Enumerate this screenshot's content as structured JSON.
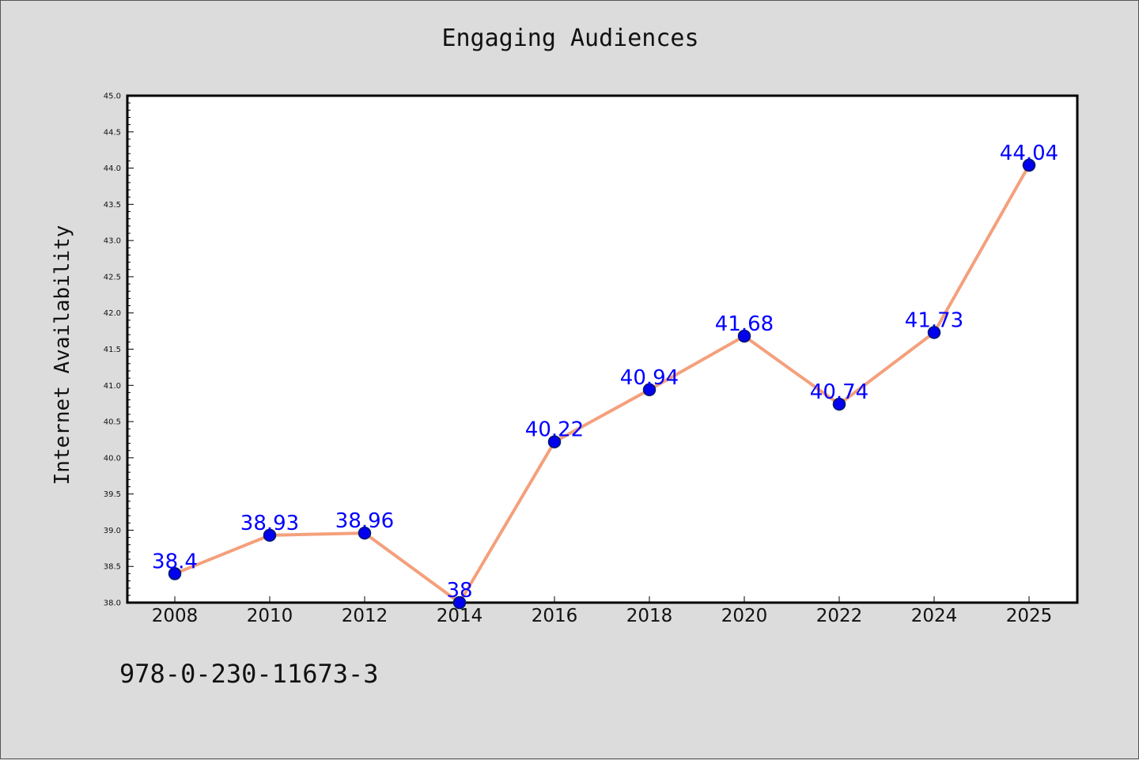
{
  "chart_data": {
    "type": "line",
    "title": "Engaging Audiences",
    "xlabel": "",
    "ylabel": "Internet Availability",
    "categories": [
      "2008",
      "2010",
      "2012",
      "2014",
      "2016",
      "2018",
      "2020",
      "2022",
      "2024",
      "2025"
    ],
    "series": [
      {
        "values": [
          38.4,
          38.93,
          38.96,
          38,
          40.22,
          40.94,
          41.68,
          40.74,
          41.73,
          44.04
        ]
      }
    ],
    "value_labels": [
      "38.4",
      "38.93",
      "38.96",
      "38",
      "40.22",
      "40.94",
      "41.68",
      "40.74",
      "41.73",
      "44.04"
    ],
    "ylim": [
      38.0,
      45.0
    ],
    "yticks": [
      "38.0",
      "38.5",
      "39.0",
      "39.5",
      "40.0",
      "40.5",
      "41.0",
      "41.5",
      "42.0",
      "42.5",
      "43.0",
      "43.5",
      "44.0",
      "44.5",
      "45.0"
    ],
    "grid": false,
    "line_color": "#f4a07c",
    "marker_color": "#0000ee",
    "label_color": "#0000ff"
  },
  "footer": {
    "code": "978-0-230-11673-3"
  }
}
